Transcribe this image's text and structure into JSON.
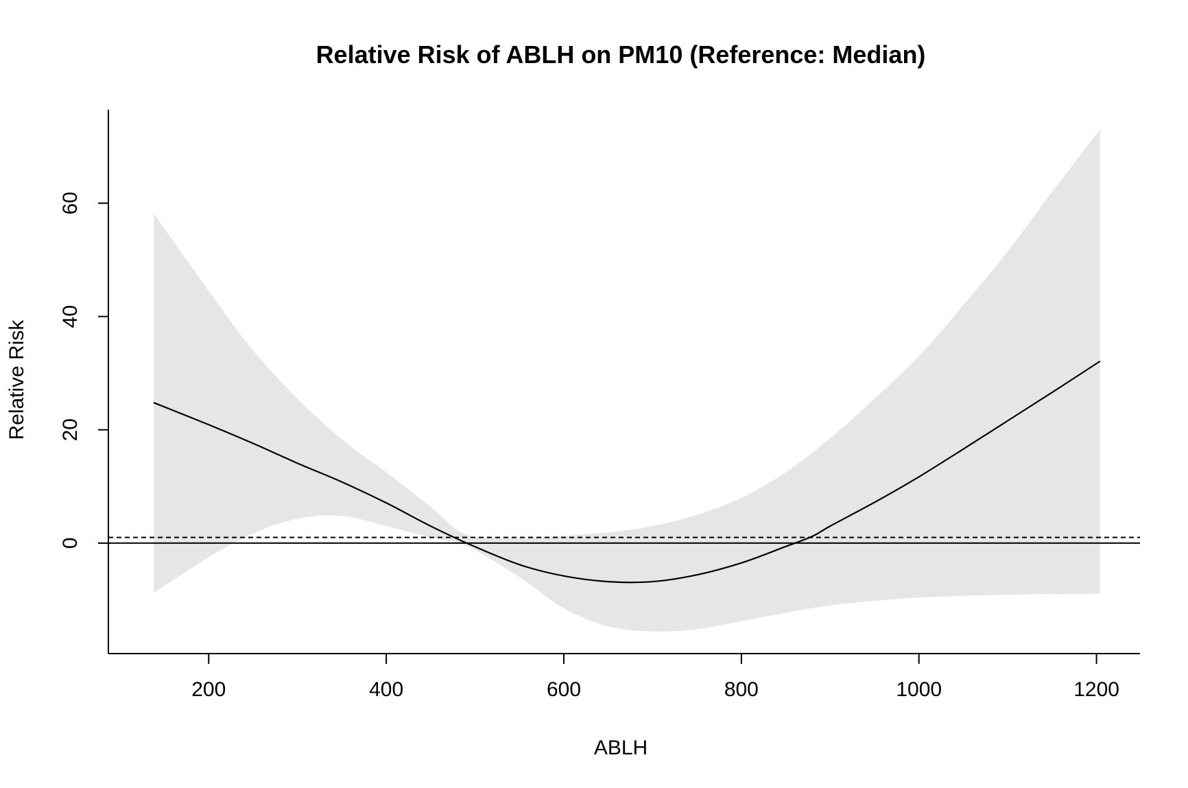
{
  "chart_data": {
    "type": "line",
    "title": "Relative Risk of ABLH on PM10 (Reference: Median)",
    "xlabel": "ABLH",
    "ylabel": "Relative Risk",
    "xlim": [
      87,
      1249
    ],
    "ylim": [
      -19.5,
      76.5
    ],
    "x_ticks": [
      200,
      400,
      600,
      800,
      1000,
      1200
    ],
    "y_ticks": [
      0,
      20,
      40,
      60
    ],
    "x_tick_labels": [
      "200",
      "400",
      "600",
      "800",
      "1000",
      "1200"
    ],
    "y_tick_labels": [
      "0",
      "20",
      "40",
      "60"
    ],
    "grid": false,
    "colors": {
      "line": "#000000",
      "band": "#e6e6e6",
      "reference": "#000000"
    },
    "series": [
      {
        "role": "estimate",
        "x": [
          138,
          200,
          250,
          300,
          350,
          400,
          450,
          495,
          550,
          600,
          650,
          700,
          750,
          800,
          850,
          880,
          900,
          950,
          1000,
          1050,
          1100,
          1150,
          1204
        ],
        "y": [
          24.8,
          20.9,
          17.6,
          14.1,
          10.8,
          7.1,
          3.0,
          -0.3,
          -3.8,
          -5.8,
          -6.8,
          -6.8,
          -5.6,
          -3.5,
          -0.6,
          1.2,
          3.0,
          7.2,
          11.7,
          16.6,
          21.6,
          26.6,
          32.1
        ]
      },
      {
        "role": "ci_upper",
        "x": [
          138,
          200,
          250,
          300,
          350,
          400,
          450,
          490,
          550,
          600,
          650,
          700,
          750,
          800,
          850,
          900,
          950,
          1000,
          1050,
          1100,
          1150,
          1204
        ],
        "y": [
          58.2,
          44.5,
          34.0,
          25.5,
          18.3,
          12.5,
          6.4,
          1.5,
          0.9,
          1.3,
          1.9,
          3.0,
          5.0,
          8.0,
          12.5,
          18.5,
          25.5,
          33.0,
          42.0,
          51.5,
          62.0,
          73.0
        ]
      },
      {
        "role": "ci_lower",
        "x": [
          138,
          200,
          250,
          300,
          350,
          400,
          450,
          490,
          550,
          600,
          650,
          700,
          750,
          800,
          850,
          900,
          950,
          1000,
          1050,
          1100,
          1150,
          1204
        ],
        "y": [
          -8.8,
          -2.5,
          1.7,
          4.3,
          4.8,
          3.0,
          1.0,
          -0.5,
          -6.0,
          -11.5,
          -14.7,
          -15.6,
          -15.2,
          -13.8,
          -12.3,
          -11.0,
          -10.2,
          -9.6,
          -9.3,
          -9.1,
          -9.0,
          -8.9
        ]
      }
    ],
    "reference_lines": [
      {
        "y": 0,
        "style": "solid"
      },
      {
        "y": 1,
        "style": "dashed"
      }
    ]
  }
}
